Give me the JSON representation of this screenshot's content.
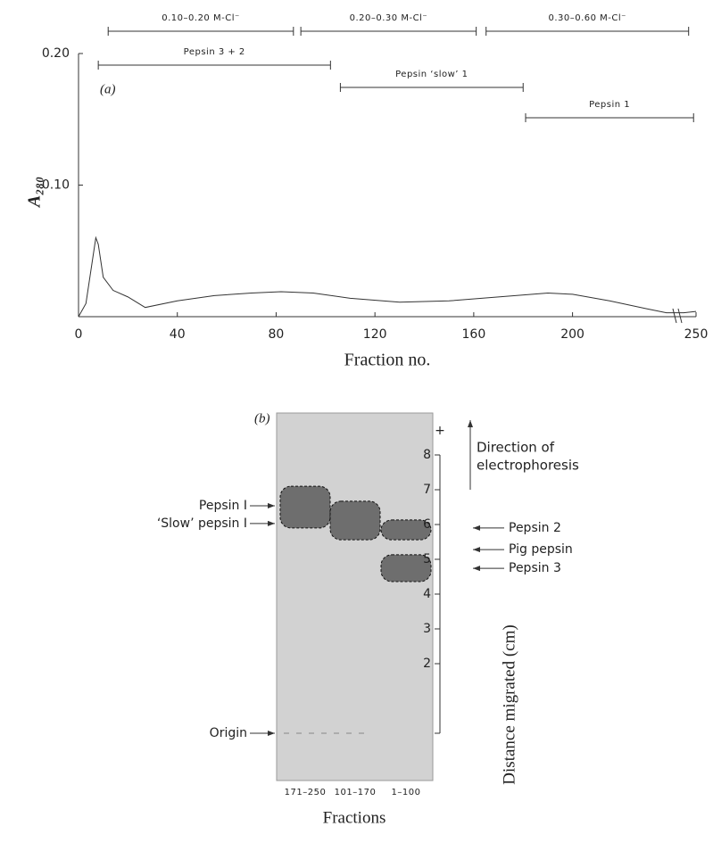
{
  "chart_data": [
    {
      "type": "line",
      "label": "(a)",
      "xlabel": "Fraction no.",
      "ylabel": "A₂₈₀",
      "x": [
        0,
        3,
        7,
        8,
        10,
        14,
        20,
        27,
        40,
        55,
        70,
        82,
        95,
        110,
        130,
        150,
        170,
        190,
        200,
        215,
        230,
        238,
        245,
        250
      ],
      "series": [
        {
          "color": "#333333",
          "values": [
            0,
            0.01,
            0.06,
            0.055,
            0.03,
            0.02,
            0.015,
            0.007,
            0.012,
            0.016,
            0.018,
            0.019,
            0.018,
            0.014,
            0.011,
            0.012,
            0.015,
            0.018,
            0.017,
            0.012,
            0.006,
            0.003,
            0.003,
            0.004
          ]
        }
      ],
      "xlim": [
        0,
        250
      ],
      "xticks": [
        0,
        40,
        80,
        120,
        160,
        200,
        250
      ],
      "ylim": [
        0,
        0.2
      ],
      "yticks": [
        {
          "value": 0.1,
          "label": "0.10"
        },
        {
          "value": 0.2,
          "label": "0.20"
        }
      ],
      "salt_ranges": [
        {
          "label": "0.10–0.20 M-Cl⁻",
          "start": 12,
          "end": 87
        },
        {
          "label": "0.20–0.30 M-Cl⁻",
          "start": 90,
          "end": 161
        },
        {
          "label": "0.30–0.60 M-Cl⁻",
          "start": 165,
          "end": 247
        }
      ],
      "pepsin_ranges": [
        {
          "label": "Pepsin 3 + 2",
          "start": 8,
          "end": 102
        },
        {
          "label": "Pepsin ‘slow’ 1",
          "start": 106,
          "end": 180
        },
        {
          "label": "Pepsin 1",
          "start": 181,
          "end": 249
        }
      ]
    },
    {
      "type": "gel",
      "label": "(b)",
      "xlabel": "Fractions",
      "ylabel": "Distance migrated (cm)",
      "lanes": [
        "171–250",
        "101–170",
        "1–100"
      ],
      "bands": [
        {
          "lane": 0,
          "top": 7.1,
          "bottom": 5.9
        },
        {
          "lane": 1,
          "top": 6.67,
          "bottom": 5.56
        },
        {
          "lane": 2,
          "top": 6.13,
          "bottom": 5.56
        },
        {
          "lane": 2,
          "top": 5.13,
          "bottom": 4.36
        }
      ],
      "ylim": [
        0,
        9
      ],
      "yticks": [
        2,
        3,
        4,
        5,
        6,
        7,
        8
      ],
      "top_label": "+",
      "direction_label": [
        "Direction of",
        "electrophoresis"
      ],
      "markers_left": [
        {
          "label": "Pepsin I",
          "value": 6.54
        },
        {
          "label": "‘Slow’ pepsin I",
          "value": 6.03
        },
        {
          "label": "Origin",
          "value": 0
        }
      ],
      "markers_right": [
        {
          "label": "Pepsin 2",
          "value": 5.9
        },
        {
          "label": "Pig pepsin",
          "value": 5.28
        },
        {
          "label": "Pepsin 3",
          "value": 4.74
        }
      ]
    }
  ]
}
